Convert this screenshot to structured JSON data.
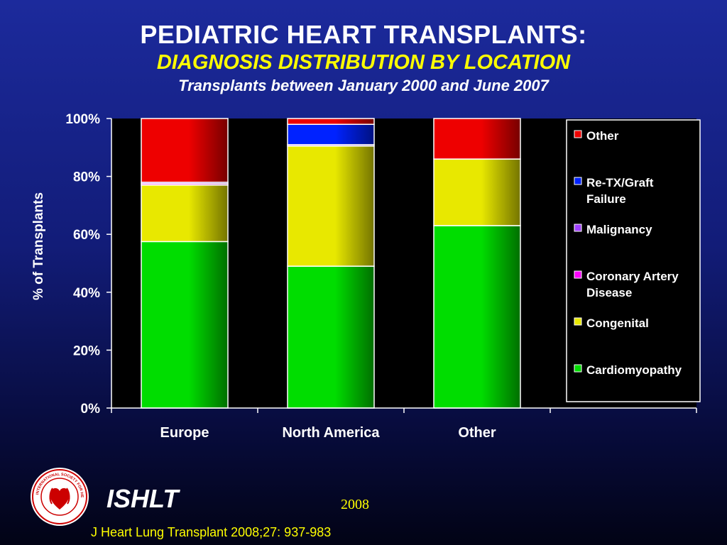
{
  "header": {
    "title": "PEDIATRIC HEART TRANSPLANTS:",
    "subtitle": "DIAGNOSIS DISTRIBUTION BY LOCATION",
    "subsubtitle": "Transplants between January 2000 and June 2007"
  },
  "footer": {
    "brand": "ISHLT",
    "year": "2008",
    "citation": "J Heart Lung Transplant 2008;27: 937-983",
    "logo_text": "INTERNATIONAL SOCIETY FOR HEART & LUNG TRANSPLANTATION"
  },
  "chart_data": {
    "type": "bar",
    "stacked": true,
    "categories": [
      "Europe",
      "North America",
      "Other"
    ],
    "ylabel": "% of Transplants",
    "ylim": [
      0,
      100
    ],
    "yticks": [
      "0%",
      "20%",
      "40%",
      "60%",
      "80%",
      "100%"
    ],
    "legend_position": "right",
    "grid": false,
    "series": [
      {
        "name": "Cardiomyopathy",
        "color": "#00dd00",
        "values": [
          57.5,
          49,
          63
        ]
      },
      {
        "name": "Congenital",
        "color": "#e8e800",
        "values": [
          19.5,
          41.5,
          23
        ]
      },
      {
        "name": "Coronary Artery Disease",
        "color": "#ff00ff",
        "values": [
          0.5,
          0,
          0
        ]
      },
      {
        "name": "Malignancy",
        "color": "#a040ff",
        "values": [
          0.5,
          0.5,
          0
        ]
      },
      {
        "name": "Re-TX/Graft Failure",
        "color": "#0022ff",
        "values": [
          0,
          7,
          0
        ]
      },
      {
        "name": "Other",
        "color": "#ee0000",
        "values": [
          22,
          2,
          14
        ]
      }
    ]
  }
}
